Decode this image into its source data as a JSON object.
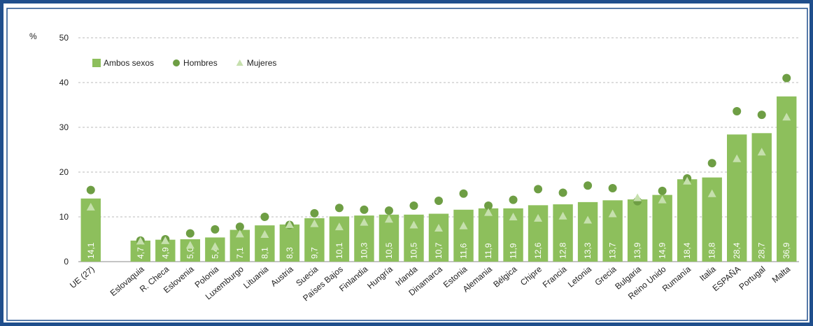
{
  "chart_data": {
    "type": "bar",
    "ylabel": "%",
    "categories": [
      "UE (27)",
      null,
      "Eslovaquia",
      "R. Checa",
      "Eslovenia",
      "Polonia",
      "Luxemburgo",
      "Lituania",
      "Austria",
      "Suecia",
      "Países Bajos",
      "Finlandia",
      "Hungría",
      "Irlanda",
      "Dinamarca",
      "Estonia",
      "Alemania",
      "Bélgica",
      "Chipre",
      "Francia",
      "Letonia",
      "Grecia",
      "Bulgaria",
      "Reino Unido",
      "Rumanía",
      "Italia",
      "ESPAÑA",
      "Portugal",
      "Malta"
    ],
    "series": [
      {
        "name": "Ambos sexos",
        "color": "#8dbf5c",
        "marker": "bar",
        "values": [
          14.1,
          null,
          4.7,
          4.9,
          5.0,
          5.4,
          7.1,
          8.1,
          8.3,
          9.7,
          10.1,
          10.3,
          10.5,
          10.5,
          10.7,
          11.6,
          11.9,
          11.9,
          12.6,
          12.8,
          13.3,
          13.7,
          13.9,
          14.9,
          18.4,
          18.8,
          28.4,
          28.7,
          36.9
        ],
        "value_labels": [
          "14,1",
          null,
          "4,7",
          "4,9",
          "5,0",
          "5,4",
          "7,1",
          "8,1",
          "8,3",
          "9,7",
          "10,1",
          "10,3",
          "10,5",
          "10,5",
          "10,7",
          "11,6",
          "11,9",
          "11,9",
          "12,6",
          "12,8",
          "13,3",
          "13,7",
          "13,9",
          "14,9",
          "18,4",
          "18,8",
          "28,4",
          "28,7",
          "36,9"
        ]
      },
      {
        "name": "Hombres",
        "color": "#6e9e44",
        "marker": "circle",
        "values": [
          16,
          null,
          4.7,
          5,
          6.3,
          7.2,
          7.8,
          10,
          8.2,
          10.8,
          12,
          11.6,
          11.4,
          12.5,
          13.6,
          15.2,
          12.5,
          13.8,
          16.2,
          15.4,
          17,
          16.4,
          13.5,
          15.8,
          18.6,
          22,
          33.6,
          32.8,
          41
        ]
      },
      {
        "name": "Mujeres",
        "color": "#c6e0ad",
        "marker": "triangle",
        "values": [
          12.2,
          null,
          4.6,
          4.7,
          3.7,
          3.4,
          6.2,
          6.1,
          8.3,
          8.5,
          7.8,
          8.8,
          9.5,
          8.2,
          7.5,
          8.0,
          11,
          10,
          9.7,
          10.2,
          9.3,
          10.7,
          14.3,
          13.8,
          18,
          15.2,
          23,
          24.5,
          32.3
        ]
      }
    ],
    "ylim": [
      0,
      50
    ],
    "yticks": [
      0,
      10,
      20,
      30,
      40,
      50
    ],
    "grid": true,
    "legend": "upper left"
  }
}
